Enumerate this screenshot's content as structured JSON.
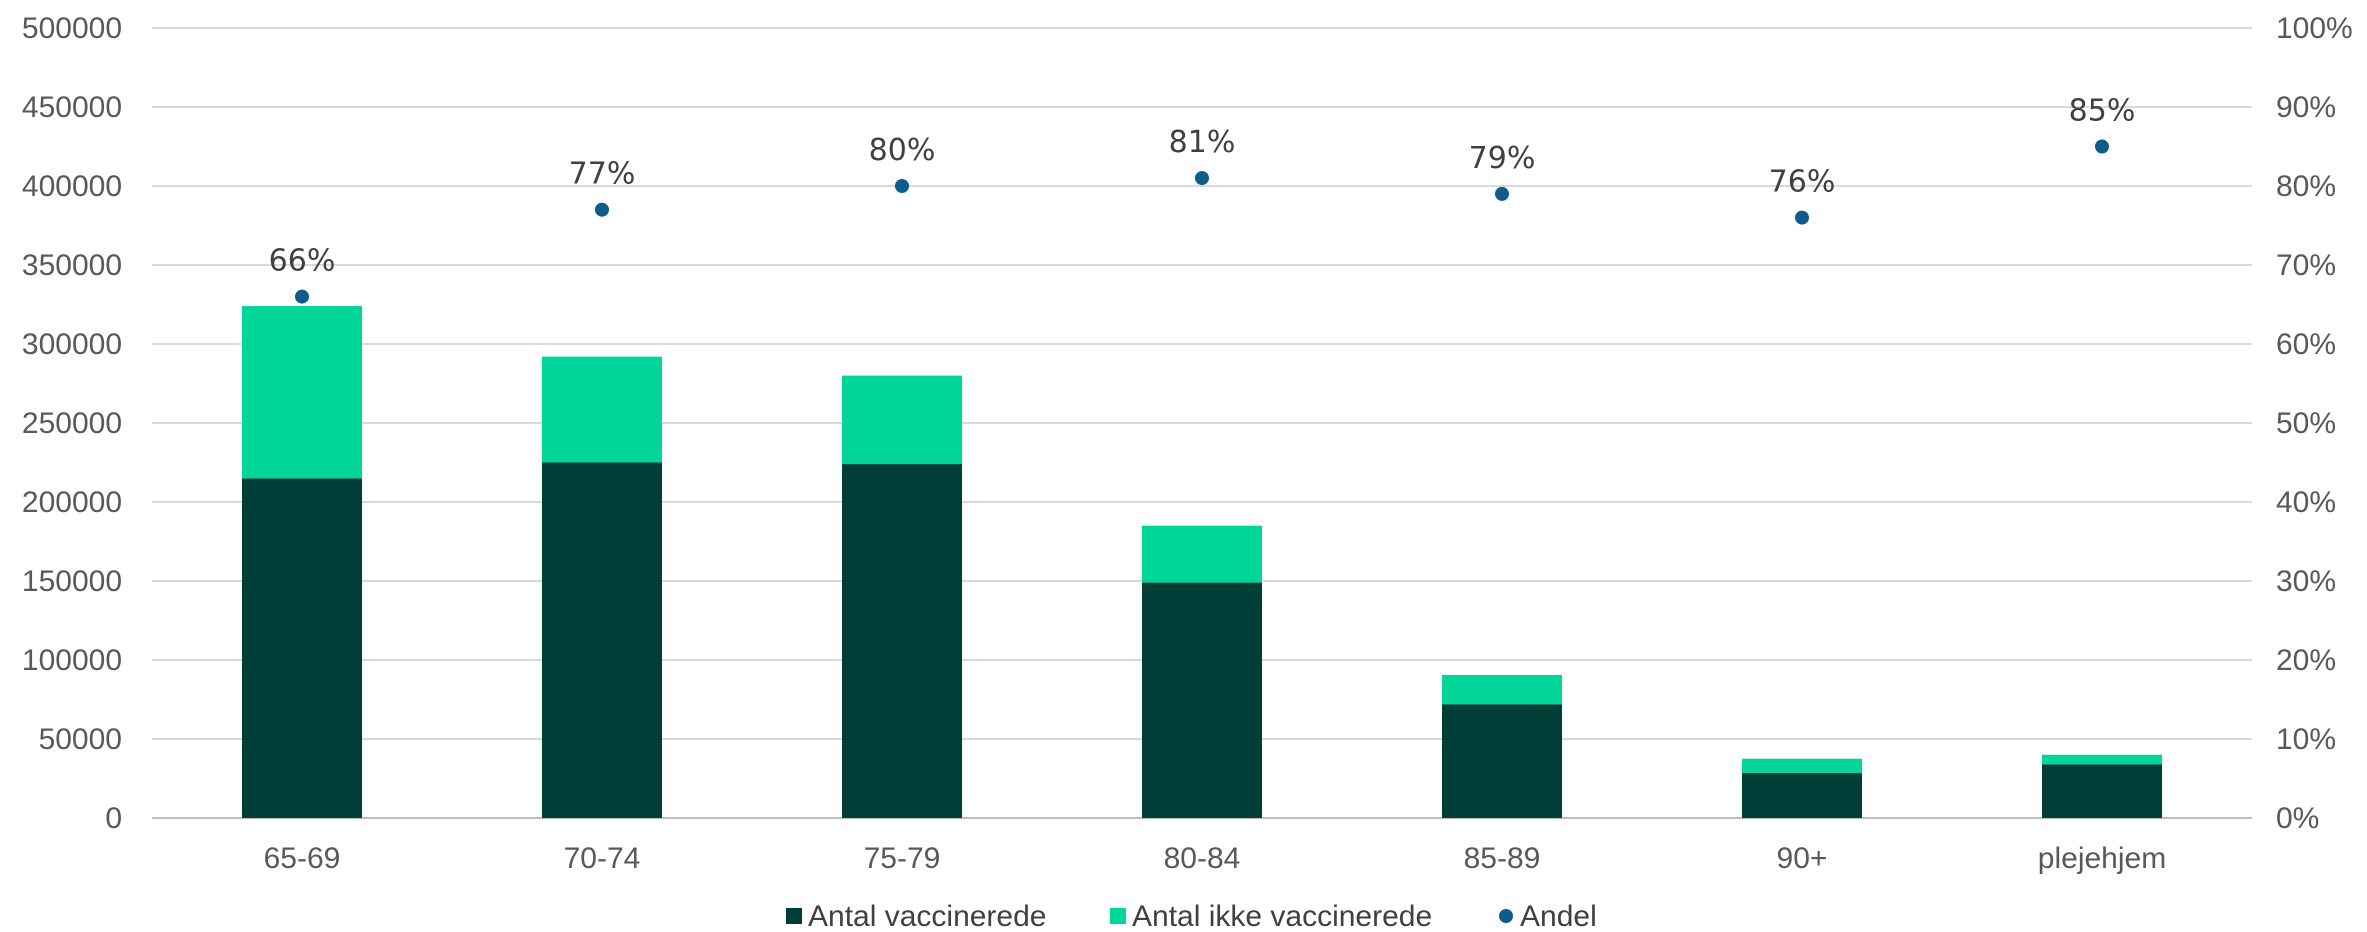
{
  "chart_data": {
    "type": "bar",
    "stacked": true,
    "categories": [
      "65-69",
      "70-74",
      "75-79",
      "80-84",
      "85-89",
      "90+",
      "plejehjem"
    ],
    "series": [
      {
        "name": "Antal vaccinerede",
        "color": "#003f38",
        "axis": "left",
        "values": [
          215000,
          225000,
          224000,
          149000,
          72000,
          28500,
          34000
        ]
      },
      {
        "name": "Antal ikke vaccinerede",
        "color": "#00d59a",
        "axis": "left",
        "values": [
          109000,
          67000,
          56000,
          36000,
          18500,
          9000,
          6000
        ]
      },
      {
        "name": "Andel",
        "color": "#0f5c8c",
        "axis": "right",
        "kind": "point",
        "values": [
          0.66,
          0.77,
          0.8,
          0.81,
          0.79,
          0.76,
          0.85
        ],
        "labels": [
          "66%",
          "77%",
          "80%",
          "81%",
          "79%",
          "76%",
          "85%"
        ]
      }
    ],
    "y_left": {
      "min": 0,
      "max": 500000,
      "step": 50000,
      "ticks": [
        "0",
        "50000",
        "100000",
        "150000",
        "200000",
        "250000",
        "300000",
        "350000",
        "400000",
        "450000",
        "500000"
      ]
    },
    "y_right": {
      "min": 0,
      "max": 1,
      "step": 0.1,
      "ticks": [
        "0%",
        "10%",
        "20%",
        "30%",
        "40%",
        "50%",
        "60%",
        "70%",
        "80%",
        "90%",
        "100%"
      ]
    },
    "grid": true,
    "legend_position": "bottom"
  }
}
